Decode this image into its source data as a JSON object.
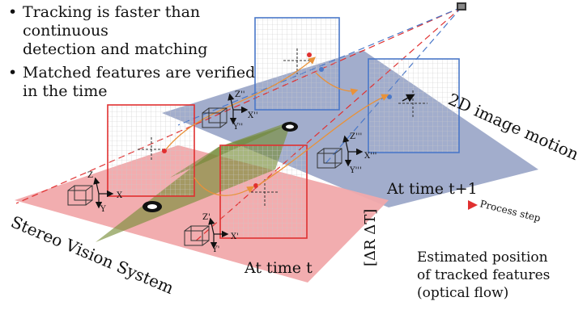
{
  "bullets": [
    {
      "line1": "Tracking is faster than continuous",
      "line2": "detection and matching"
    },
    {
      "line1": "Matched features are verified",
      "line2": "in the time"
    }
  ],
  "labels": {
    "image_motion": "2D image motion",
    "time_t1": "At time  t+1",
    "time_t": "At time  t",
    "stereo": "Stereo Vision System",
    "delta": "[ΔR ΔT]",
    "process_step": "Process step",
    "estimated_line1": "Estimated position",
    "estimated_line2": "of tracked features",
    "estimated_line3": "(optical flow)"
  },
  "axes": {
    "left_cam": {
      "x": "X",
      "y": "Y",
      "z": "Z"
    },
    "right_cam": {
      "x": "X'",
      "y": "Y'",
      "z": "Z'"
    },
    "left_cam_t1": {
      "x": "X''",
      "y": "Y''",
      "z": "Z''"
    },
    "right_cam_t1": {
      "x": "X'''",
      "y": "Y'''",
      "z": "Z'''"
    }
  },
  "colors": {
    "ground_t": "#f1a9ab",
    "ground_t1": "#9aa6c8",
    "frame_red": "#e03030",
    "frame_blue": "#4a78c8",
    "optical_flow": "#e8923a",
    "overlap": "#7a8f3a"
  }
}
